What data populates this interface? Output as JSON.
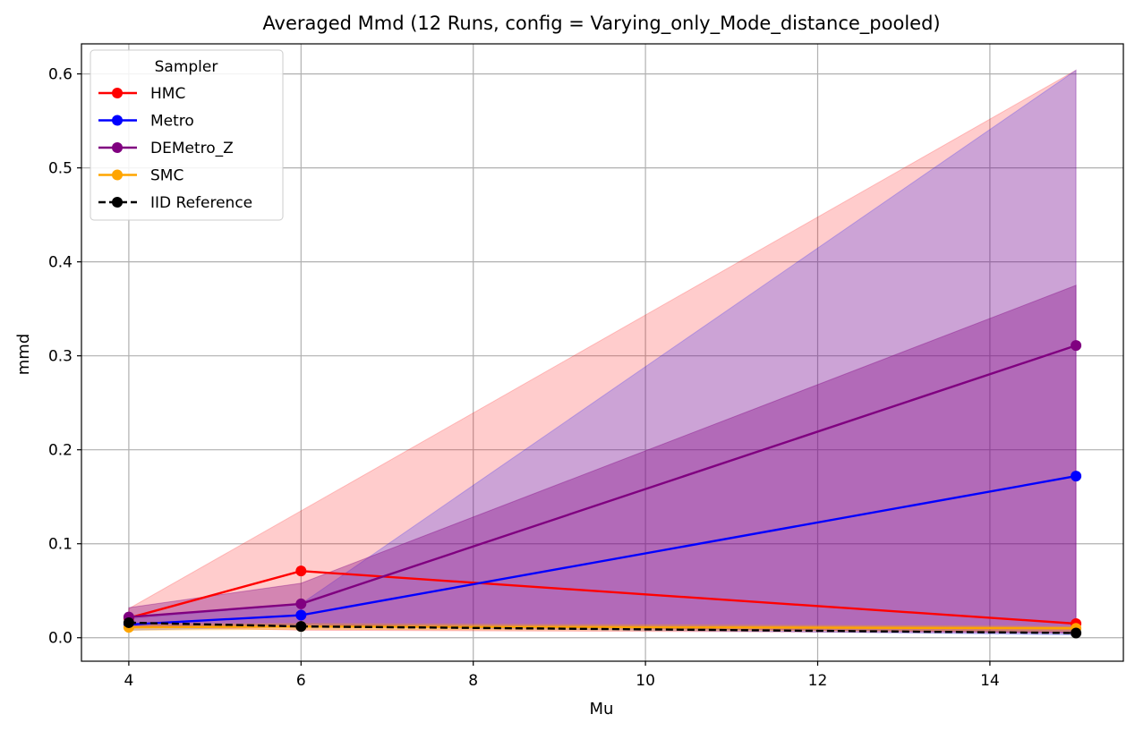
{
  "chart_data": {
    "type": "line",
    "title": "Averaged Mmd (12 Runs, config = Varying_only_Mode_distance_pooled)",
    "xlabel": "Mu",
    "ylabel": "mmd",
    "x": [
      4,
      6,
      15
    ],
    "xlim": [
      3.45,
      15.55
    ],
    "ylim": [
      -0.025,
      0.632
    ],
    "xticks": [
      4,
      6,
      8,
      10,
      12,
      14
    ],
    "xtick_labels": [
      "4",
      "6",
      "8",
      "10",
      "12",
      "14"
    ],
    "yticks": [
      0.0,
      0.1,
      0.2,
      0.3,
      0.4,
      0.5,
      0.6
    ],
    "ytick_labels": [
      "0.0",
      "0.1",
      "0.2",
      "0.3",
      "0.4",
      "0.5",
      "0.6"
    ],
    "grid": true,
    "legend": {
      "title": "Sampler",
      "position": "upper left"
    },
    "series": [
      {
        "name": "HMC",
        "color": "#ff0000",
        "values": [
          0.021,
          0.071,
          0.015
        ],
        "band_lower": [
          0.012,
          0.008,
          0.005
        ],
        "band_upper": [
          0.031,
          0.135,
          0.604
        ],
        "band_color": "#ff0000",
        "band_opacity": 0.2,
        "marker": "circle",
        "linestyle": "solid"
      },
      {
        "name": "Metro",
        "color": "#0000ff",
        "values": [
          0.014,
          0.024,
          0.172
        ],
        "band_lower": [
          0.008,
          0.012,
          0.003
        ],
        "band_upper": [
          0.02,
          0.036,
          0.604
        ],
        "band_color": "#0000ff",
        "band_opacity": 0.2,
        "marker": "circle",
        "linestyle": "solid"
      },
      {
        "name": "DEMetro_Z",
        "color": "#800080",
        "values": [
          0.022,
          0.036,
          0.311
        ],
        "band_lower": [
          0.012,
          0.014,
          0.005
        ],
        "band_upper": [
          0.032,
          0.058,
          0.375
        ],
        "band_color": "#800080",
        "band_opacity": 0.35,
        "marker": "circle",
        "linestyle": "solid"
      },
      {
        "name": "SMC",
        "color": "#ffa500",
        "values": [
          0.011,
          0.012,
          0.01
        ],
        "band_lower": [
          0.008,
          0.009,
          0.007
        ],
        "band_upper": [
          0.014,
          0.015,
          0.012
        ],
        "band_color": "#ffa500",
        "band_opacity": 0.3,
        "marker": "circle",
        "linestyle": "solid"
      },
      {
        "name": "IID Reference",
        "color": "#000000",
        "values": [
          0.016,
          0.012,
          0.005
        ],
        "marker": "circle",
        "linestyle": "dashed"
      }
    ]
  }
}
